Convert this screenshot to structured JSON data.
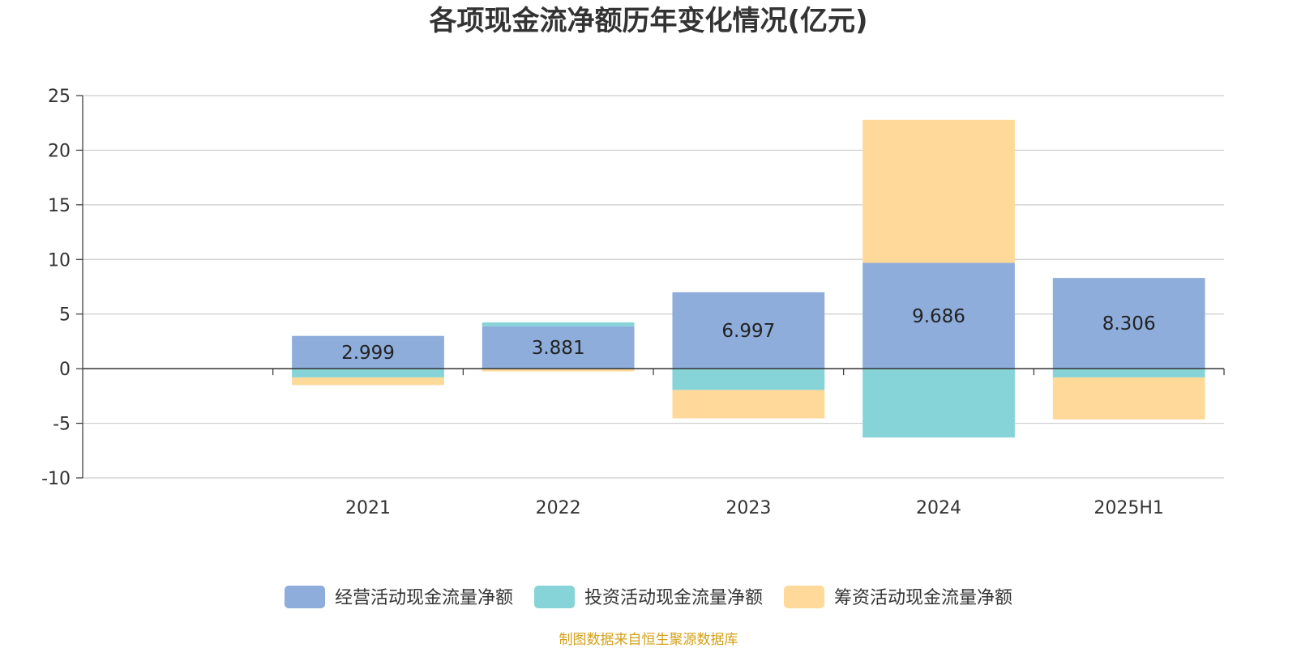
{
  "chart_data": {
    "type": "bar",
    "stacked": true,
    "title": "各项现金流净额历年变化情况(亿元)",
    "categories": [
      "2021",
      "2022",
      "2023",
      "2024",
      "2025H1"
    ],
    "series": [
      {
        "name": "经营活动现金流量净额",
        "color": "#8EADDB",
        "values": [
          2.999,
          3.881,
          6.997,
          9.686,
          8.306
        ],
        "show_labels": true
      },
      {
        "name": "投资活动现金流量净额",
        "color": "#86D4D8",
        "values": [
          -0.8,
          0.35,
          -1.95,
          -6.3,
          -0.8
        ]
      },
      {
        "name": "筹资活动现金流量净额",
        "color": "#FFD99A",
        "values": [
          -0.7,
          -0.25,
          -2.6,
          13.1,
          -3.85
        ]
      }
    ],
    "ylim": [
      -10,
      25
    ],
    "yticks": [
      -10,
      -5,
      0,
      5,
      10,
      15,
      20,
      25
    ],
    "grid": true,
    "legend_position": "bottom-center",
    "source": "制图数据来自恒生聚源数据库",
    "source_color": "#D4A017"
  }
}
